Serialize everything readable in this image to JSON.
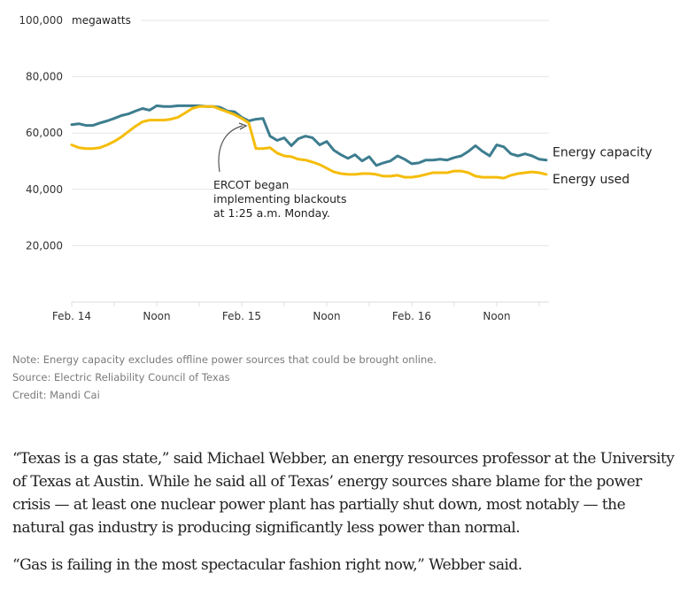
{
  "chart_data": {
    "type": "line",
    "title": "",
    "ylabel": "megawatts",
    "xlabel": "",
    "ylim": [
      0,
      100000
    ],
    "yticks": [
      20000,
      40000,
      60000,
      80000,
      100000
    ],
    "ytick_labels": [
      "20,000",
      "40,000",
      "60,000",
      "80,000",
      "100,000"
    ],
    "x_unit": "hours since Feb. 14 00:00",
    "xlim": [
      0,
      67
    ],
    "xticks": [
      0,
      6,
      12,
      18,
      24,
      30,
      36,
      42,
      48,
      54,
      60,
      66
    ],
    "xtick_labels": [
      {
        "hour": 0,
        "label": "Feb. 14"
      },
      {
        "hour": 12,
        "label": "Noon"
      },
      {
        "hour": 24,
        "label": "Feb. 15"
      },
      {
        "hour": 36,
        "label": "Noon"
      },
      {
        "hour": 48,
        "label": "Feb. 16"
      },
      {
        "hour": 60,
        "label": "Noon"
      }
    ],
    "grid": true,
    "legend": "inline-right",
    "x": [
      0,
      1,
      2,
      3,
      4,
      5,
      6,
      7,
      8,
      9,
      10,
      11,
      12,
      13,
      14,
      15,
      16,
      17,
      18,
      19,
      20,
      21,
      22,
      23,
      24,
      25,
      26,
      27,
      28,
      29,
      30,
      31,
      32,
      33,
      34,
      35,
      36,
      37,
      38,
      39,
      40,
      41,
      42,
      43,
      44,
      45,
      46,
      47,
      48,
      49,
      50,
      51,
      52,
      53,
      54,
      55,
      56,
      57,
      58,
      59,
      60,
      61,
      62,
      63,
      64,
      65,
      66,
      67
    ],
    "series": [
      {
        "name": "Energy capacity",
        "color": "#3d7d8f",
        "values": [
          63000,
          63300,
          62700,
          62700,
          63600,
          64300,
          65200,
          66200,
          66800,
          67800,
          68700,
          68100,
          69700,
          69400,
          69400,
          69700,
          69700,
          69700,
          69700,
          69400,
          69400,
          69100,
          67800,
          67500,
          65600,
          64300,
          64900,
          65200,
          58900,
          57400,
          58300,
          55500,
          58000,
          58900,
          58300,
          55800,
          57000,
          53900,
          52300,
          51000,
          52300,
          50100,
          51600,
          48500,
          49400,
          50100,
          51900,
          50700,
          49100,
          49400,
          50400,
          50400,
          50700,
          50400,
          51300,
          51900,
          53500,
          55500,
          53500,
          51900,
          55800,
          55100,
          52600,
          51900,
          52600,
          51900,
          50700,
          50400
        ]
      },
      {
        "name": "Energy used",
        "color": "#f5bd0a",
        "values": [
          55800,
          54800,
          54500,
          54500,
          54800,
          55800,
          57000,
          58600,
          60500,
          62400,
          64000,
          64600,
          64600,
          64600,
          64900,
          65600,
          67100,
          68700,
          69400,
          69400,
          69400,
          68400,
          67500,
          66500,
          65200,
          63600,
          54500,
          54500,
          54800,
          52900,
          51900,
          51600,
          50700,
          50400,
          49700,
          48800,
          47500,
          46200,
          45600,
          45300,
          45300,
          45600,
          45600,
          45300,
          44700,
          44700,
          45000,
          44300,
          44300,
          44700,
          45300,
          45900,
          45900,
          45900,
          46500,
          46500,
          45900,
          44700,
          44300,
          44300,
          44300,
          44000,
          45000,
          45600,
          45900,
          46200,
          45900,
          45300
        ]
      }
    ],
    "annotations": [
      {
        "text_lines": [
          "ERCOT began",
          "implementing blackouts",
          "at 1:25 a.m. Monday."
        ],
        "points_to_hour": 25.4
      }
    ]
  },
  "notes": {
    "note": "Note: Energy capacity excludes offline power sources that could be brought online.",
    "source": "Source: Electric Reliability Council of Texas",
    "credit": "Credit: Mandi Cai"
  },
  "article": {
    "paragraphs": [
      "“Texas is a gas state,” said Michael Webber, an energy resources professor at the University of Texas at Austin. While he said all of Texas’ energy sources share blame for the power crisis — at least one nuclear power plant has partially shut down, most notably — the natural gas industry is producing significantly less power than normal.",
      "“Gas is failing in the most spectacular fashion right now,” Webber said."
    ]
  }
}
